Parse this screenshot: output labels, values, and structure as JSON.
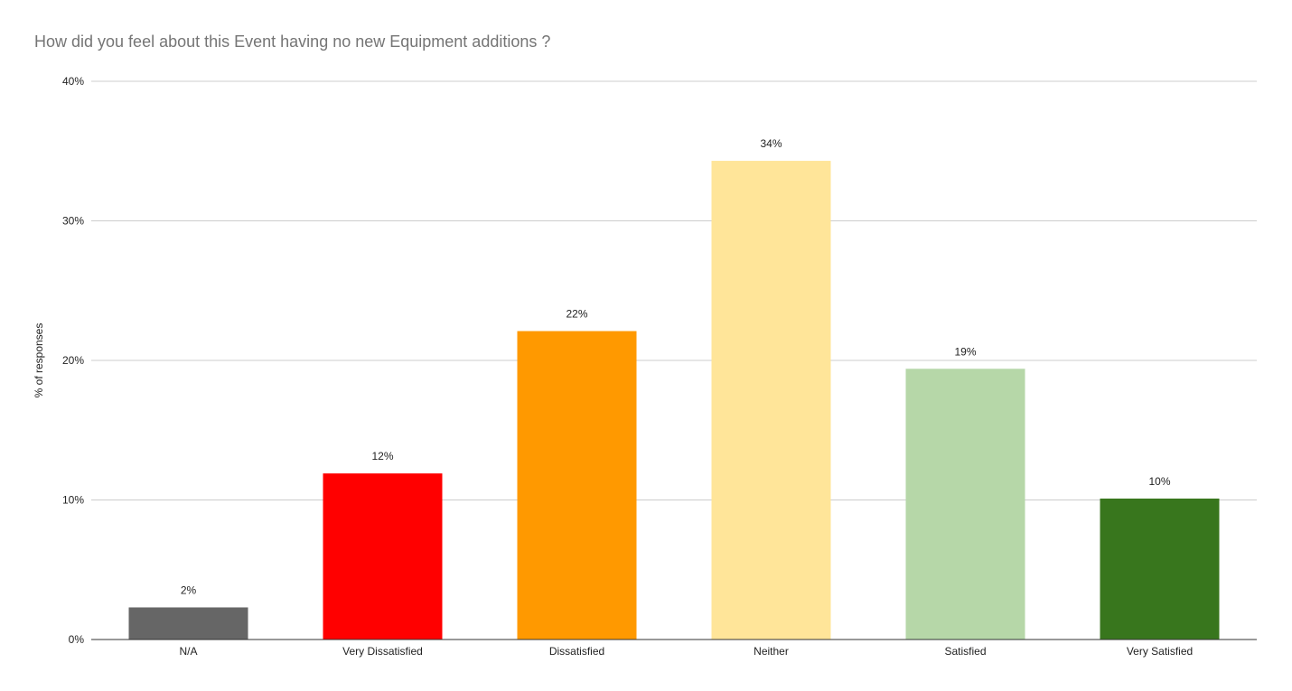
{
  "chart_data": {
    "type": "bar",
    "title": "How did you feel about this Event having no new Equipment additions ?",
    "xlabel": "",
    "ylabel": "% of responses",
    "categories": [
      "N/A",
      "Very Dissatisfied",
      "Dissatisfied",
      "Neither",
      "Satisfied",
      "Very Satisfied"
    ],
    "values": [
      2.3,
      11.9,
      22.1,
      34.3,
      19.4,
      10.1
    ],
    "value_labels": [
      "2%",
      "12%",
      "22%",
      "34%",
      "19%",
      "10%"
    ],
    "colors": [
      "#666666",
      "#ff0000",
      "#ff9900",
      "#ffe599",
      "#b6d7a8",
      "#38761d"
    ],
    "ylim": [
      0,
      40
    ],
    "yticks": [
      0,
      10,
      20,
      30,
      40
    ],
    "ytick_labels": [
      "0%",
      "10%",
      "20%",
      "30%",
      "40%"
    ],
    "grid": true,
    "legend": "none"
  }
}
